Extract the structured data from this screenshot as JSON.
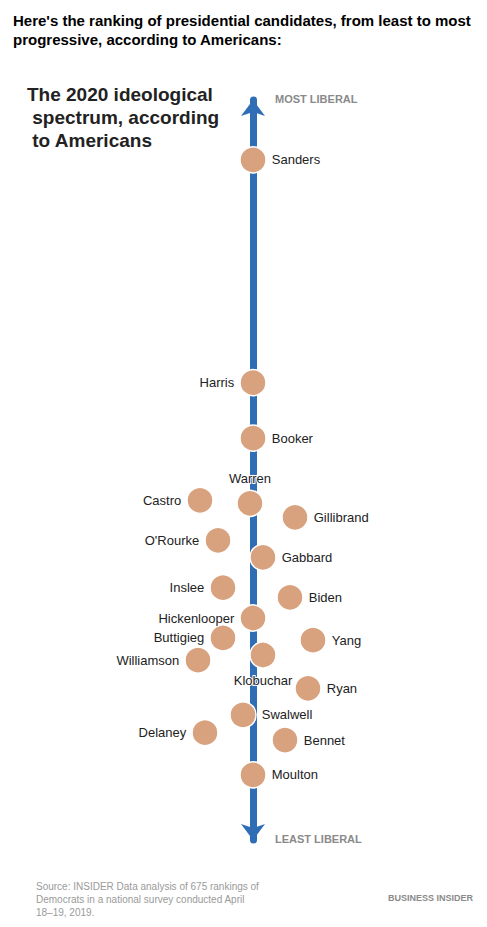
{
  "chart_data": {
    "type": "scatter",
    "title": "Here's the ranking of presidential candidates, from least to most progressive, according to Americans:",
    "subtitle": "The 2020 ideological spectrum, according to Americans",
    "y_end_labels": [
      "LEAST LIBERAL",
      "MOST LIBERAL"
    ],
    "source": "Source: INSIDER Data analysis of 675 rankings of Democrats in a national survey conducted April 18–19, 2019.",
    "credit": "BUSINESS INSIDER",
    "categories": [
      "Sanders",
      "Harris",
      "Booker",
      "Warren",
      "Castro",
      "Gillibrand",
      "O'Rourke",
      "Gabbard",
      "Inslee",
      "Biden",
      "Hickenlooper",
      "Buttigieg",
      "Yang",
      "Williamson",
      "Klobuchar",
      "Ryan",
      "Swalwell",
      "Delaney",
      "Bennet",
      "Moulton"
    ],
    "values": [
      91.9,
      61.8,
      54.3,
      45.5,
      45.9,
      43.6,
      40.5,
      38.2,
      34.1,
      32.8,
      30.0,
      27.3,
      27.0,
      24.3,
      25.0,
      20.5,
      16.9,
      14.5,
      13.5,
      8.8
    ],
    "color": "#d8a27f",
    "ylim": [
      0,
      100
    ],
    "tick_labels": false,
    "grid": false
  }
}
